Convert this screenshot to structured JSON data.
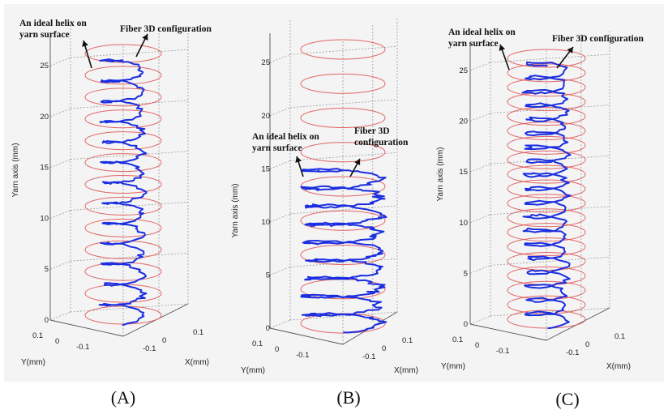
{
  "captions": [
    "(A)",
    "(B)",
    "(C)"
  ],
  "colors": {
    "helix": "#e05555",
    "fiber": "#1a2ee0",
    "background": "#f4f4f4"
  },
  "chart_data": [
    {
      "type": "line",
      "panel": "(A)",
      "ylabel": "Yarn axis (mm)",
      "xlabel": "X(mm)",
      "zlabel": "Y(mm)",
      "z_ticks": [
        "0",
        "5",
        "10",
        "15",
        "20",
        "25"
      ],
      "x_ticks": [
        "0.1",
        "0",
        "-0.1"
      ],
      "y_ticks": [
        "0.1",
        "0",
        "-0.1"
      ],
      "zlim": [
        0,
        27
      ],
      "helix_turns_visible": 13,
      "fiber_z_range": [
        0,
        26
      ],
      "series": [
        {
          "name": "An ideal helix on yarn surface"
        },
        {
          "name": "Fiber 3D configuration"
        }
      ],
      "annotations": [
        "An ideal helix on yarn surface",
        "Fiber 3D configuration"
      ]
    },
    {
      "type": "line",
      "panel": "(B)",
      "ylabel": "Yarn axis (mm)",
      "xlabel": "X(mm)",
      "zlabel": "Y(mm)",
      "z_ticks": [
        "0",
        "5",
        "10",
        "15",
        "20",
        "25"
      ],
      "x_ticks": [
        "0.1",
        "0",
        "-0.1"
      ],
      "y_ticks": [
        "0.1",
        "0",
        "-0.1"
      ],
      "zlim": [
        0,
        27
      ],
      "helix_turns_visible": 9,
      "fiber_z_range": [
        0,
        15
      ],
      "series": [
        {
          "name": "An ideal helix on yarn surface"
        },
        {
          "name": "Fiber 3D configuration"
        }
      ],
      "annotations": [
        "An ideal helix on yarn surface",
        "Fiber 3D configuration"
      ]
    },
    {
      "type": "line",
      "panel": "(C)",
      "ylabel": "Yarn axis (mm)",
      "xlabel": "X(mm)",
      "zlabel": "Y(mm)",
      "z_ticks": [
        "0",
        "5",
        "10",
        "15",
        "20",
        "25"
      ],
      "x_ticks": [
        "0.1",
        "0",
        "-0.1"
      ],
      "y_ticks": [
        "0.1",
        "0",
        "-0.1"
      ],
      "zlim": [
        0,
        27
      ],
      "helix_turns_visible": 19,
      "fiber_z_range": [
        0,
        26
      ],
      "series": [
        {
          "name": "An ideal helix on yarn surface"
        },
        {
          "name": "Fiber 3D configuration"
        }
      ],
      "annotations": [
        "An ideal helix on yarn surface",
        "Fiber 3D configuration"
      ]
    }
  ]
}
